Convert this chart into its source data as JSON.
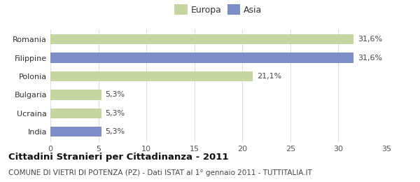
{
  "categories": [
    "Romania",
    "Filippine",
    "Polonia",
    "Bulgaria",
    "Ucraina",
    "India"
  ],
  "values": [
    31.6,
    31.6,
    21.1,
    5.3,
    5.3,
    5.3
  ],
  "labels": [
    "31,6%",
    "31,6%",
    "21,1%",
    "5,3%",
    "5,3%",
    "5,3%"
  ],
  "colors": [
    "#c5d6a0",
    "#7b8ec8",
    "#c5d6a0",
    "#c5d6a0",
    "#c5d6a0",
    "#7b8ec8"
  ],
  "legend": [
    {
      "label": "Europa",
      "color": "#c5d6a0"
    },
    {
      "label": "Asia",
      "color": "#7b8ec8"
    }
  ],
  "xlim": [
    0,
    35
  ],
  "xticks": [
    0,
    5,
    10,
    15,
    20,
    25,
    30,
    35
  ],
  "title": "Cittadini Stranieri per Cittadinanza - 2011",
  "subtitle": "COMUNE DI VIETRI DI POTENZA (PZ) - Dati ISTAT al 1° gennaio 2011 - TUTTITALIA.IT",
  "title_fontsize": 9.5,
  "subtitle_fontsize": 7.5,
  "bar_height": 0.55,
  "label_fontsize": 8,
  "tick_fontsize": 8,
  "legend_fontsize": 9,
  "bg_color": "#ffffff"
}
